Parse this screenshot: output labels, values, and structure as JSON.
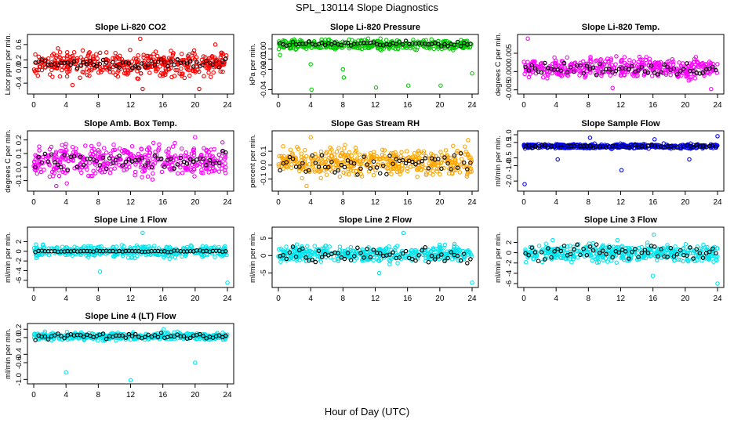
{
  "title": "SPL_130114  Slope Diagnostics",
  "xlabel": "Hour of Day (UTC)",
  "chart_data": [
    {
      "type": "scatter",
      "title": "Slope Li-820 CO2",
      "ylabel": "Licor ppm per min.",
      "color": "#ff0000",
      "xlim": [
        0,
        24
      ],
      "ylim": [
        -0.62,
        0.8
      ],
      "yticks": [
        -0.4,
        0,
        0.2,
        0.6
      ],
      "yticklabels": [
        "-0.4",
        "0.0",
        "0.2",
        "0.6"
      ],
      "xticks": [
        0,
        4,
        8,
        12,
        16,
        20,
        24
      ],
      "center": 0.1,
      "spread": 0.25,
      "black_center": 0.1,
      "black_spread": 0.1,
      "outliers": [
        [
          13.2,
          0.75
        ],
        [
          4.8,
          -0.45
        ],
        [
          13.5,
          -0.55
        ],
        [
          20.5,
          -0.55
        ],
        [
          22.5,
          0.6
        ],
        [
          3.0,
          0.5
        ]
      ]
    },
    {
      "type": "scatter",
      "title": "Slope Li-820 Pressure",
      "ylabel": "kPa per min.",
      "color": "#00cc00",
      "xlim": [
        0,
        24
      ],
      "ylim": [
        -0.042,
        0.012
      ],
      "yticks": [
        -0.04,
        -0.02,
        -0.01,
        0
      ],
      "yticklabels": [
        "-0.04",
        "-0.02",
        "-0.01",
        "0.00"
      ],
      "xticks": [
        0,
        4,
        8,
        12,
        16,
        20,
        24
      ],
      "center": 0.004,
      "spread": 0.004,
      "black_center": 0.005,
      "black_spread": 0.002,
      "outliers": [
        [
          0.2,
          -0.006
        ],
        [
          4.1,
          -0.04
        ],
        [
          8.1,
          -0.028
        ],
        [
          12.1,
          -0.038
        ],
        [
          16.1,
          -0.036
        ],
        [
          20.1,
          -0.036
        ],
        [
          24,
          -0.024
        ],
        [
          4.0,
          -0.015
        ],
        [
          8.0,
          -0.02
        ]
      ]
    },
    {
      "type": "scatter",
      "title": "Slope Li-820 Temp.",
      "ylabel": "degrees C per min.",
      "color": "#ff00ff",
      "xlim": [
        0,
        24
      ],
      "ylim": [
        -0.0055,
        0.0095
      ],
      "yticks": [
        -0.005,
        0,
        0.005
      ],
      "yticklabels": [
        "-0.005",
        "0.000",
        "0.005"
      ],
      "xticks": [
        0,
        4,
        8,
        12,
        16,
        20,
        24
      ],
      "center": 0.001,
      "spread": 0.0022,
      "black_center": 0.0008,
      "black_spread": 0.0014,
      "outliers": [
        [
          0.5,
          0.009
        ],
        [
          11.0,
          -0.0045
        ],
        [
          23.2,
          -0.0048
        ]
      ]
    },
    {
      "type": "scatter",
      "title": "Slope Amb. Box Temp.",
      "ylabel": "degrees C per min.",
      "color": "#ff00ff",
      "xlim": [
        0,
        24
      ],
      "ylim": [
        -0.16,
        0.25
      ],
      "yticks": [
        -0.1,
        0,
        0.1,
        0.2
      ],
      "yticklabels": [
        "-0.1",
        "0.0",
        "0.1",
        "0.2"
      ],
      "xticks": [
        0,
        4,
        8,
        12,
        16,
        20,
        24
      ],
      "center": 0.05,
      "spread": 0.09,
      "black_center": 0.04,
      "black_spread": 0.06,
      "outliers": [
        [
          2.8,
          -0.14
        ],
        [
          4.1,
          -0.12
        ],
        [
          20.0,
          0.22
        ]
      ]
    },
    {
      "type": "scatter",
      "title": "Slope Gas Stream RH",
      "ylabel": "percent per min.",
      "color": "#ffa500",
      "xlim": [
        0,
        24
      ],
      "ylim": [
        -0.17,
        0.23
      ],
      "yticks": [
        -0.1,
        0,
        0.1
      ],
      "yticklabels": [
        "-0.1",
        "0.0",
        "0.1"
      ],
      "xticks": [
        0,
        4,
        8,
        12,
        16,
        20,
        24
      ],
      "center": 0.02,
      "spread": 0.08,
      "black_center": 0.01,
      "black_spread": 0.06,
      "outliers": [
        [
          4.0,
          0.2
        ],
        [
          3.5,
          -0.15
        ],
        [
          23.5,
          0.18
        ]
      ]
    },
    {
      "type": "scatter",
      "title": "Slope Sample Flow",
      "ylabel": "ml/min per min.",
      "color": "#0000ff",
      "xlim": [
        0,
        24
      ],
      "ylim": [
        -2.5,
        1.1
      ],
      "yticks": [
        -2.0,
        -1.0,
        -0.5,
        0.5,
        1.0
      ],
      "yticklabels": [
        "-2.0",
        "-1.0",
        "-0.5",
        "0.5",
        "1.0"
      ],
      "xticks": [
        0,
        4,
        8,
        12,
        16,
        20,
        24
      ],
      "center": 0.25,
      "spread": 0.12,
      "black_center": 0.25,
      "black_spread": 0.1,
      "outliers": [
        [
          0.1,
          -2.2
        ],
        [
          12.1,
          -1.3
        ],
        [
          8.2,
          0.8
        ],
        [
          24,
          0.9
        ],
        [
          16.2,
          0.7
        ],
        [
          20.5,
          -0.6
        ],
        [
          4.2,
          -0.6
        ]
      ]
    },
    {
      "type": "scatter",
      "title": "Slope Line 1 Flow",
      "ylabel": "ml/min per min.",
      "color": "#00e5ee",
      "xlim": [
        0,
        24
      ],
      "ylim": [
        -7,
        4.5
      ],
      "yticks": [
        -6,
        -4,
        -2,
        0,
        2
      ],
      "yticklabels": [
        "-6",
        "-4",
        "-2",
        "0",
        "2"
      ],
      "xticks": [
        0,
        4,
        8,
        12,
        16,
        20,
        24
      ],
      "center": 0,
      "spread": 0.9,
      "black_center": 0,
      "black_spread": 0.12,
      "outliers": [
        [
          24,
          -6.5
        ],
        [
          13.5,
          3.8
        ],
        [
          8.2,
          -4.2
        ]
      ]
    },
    {
      "type": "scatter",
      "title": "Slope Line 2 Flow",
      "ylabel": "ml/min per min.",
      "color": "#00e5ee",
      "xlim": [
        0,
        24
      ],
      "ylim": [
        -8.5,
        7.5
      ],
      "yticks": [
        -5,
        0,
        5
      ],
      "yticklabels": [
        "-5",
        "0",
        "5"
      ],
      "xticks": [
        0,
        4,
        8,
        12,
        16,
        20,
        24
      ],
      "center": 0.5,
      "spread": 1.8,
      "black_center": 0,
      "black_spread": 2.0,
      "outliers": [
        [
          24,
          -7.8
        ],
        [
          15.5,
          6.5
        ],
        [
          12.5,
          -5
        ]
      ]
    },
    {
      "type": "scatter",
      "title": "Slope Line 3 Flow",
      "ylabel": "ml/min per min.",
      "color": "#00e5ee",
      "xlim": [
        0,
        24
      ],
      "ylim": [
        -6.3,
        4.5
      ],
      "yticks": [
        -6,
        -4,
        -2,
        0,
        2
      ],
      "yticklabels": [
        "-6",
        "-4",
        "-2",
        "0",
        "2"
      ],
      "xticks": [
        0,
        4,
        8,
        12,
        16,
        20,
        24
      ],
      "center": 0,
      "spread": 1.4,
      "black_center": 0,
      "black_spread": 1.3,
      "outliers": [
        [
          24,
          -6
        ],
        [
          16.1,
          3.5
        ],
        [
          16.0,
          -4.5
        ]
      ]
    },
    {
      "type": "scatter",
      "title": "Slope Line 4 (LT) Flow",
      "ylabel": "ml/min per min.",
      "color": "#00e5ee",
      "xlim": [
        0,
        24
      ],
      "ylim": [
        -1.05,
        0.28
      ],
      "yticks": [
        -1.0,
        -0.6,
        -0.4,
        0,
        0.2
      ],
      "yticklabels": [
        "-1.0",
        "-0.6",
        "-0.4",
        "0.0",
        "0.2"
      ],
      "xticks": [
        0,
        4,
        8,
        12,
        16,
        20,
        24
      ],
      "center": 0.03,
      "spread": 0.07,
      "black_center": 0.03,
      "black_spread": 0.06,
      "outliers": [
        [
          12.0,
          -1.02
        ],
        [
          4.0,
          -0.83
        ],
        [
          20.0,
          -0.6
        ],
        [
          16.1,
          0.2
        ]
      ]
    }
  ]
}
